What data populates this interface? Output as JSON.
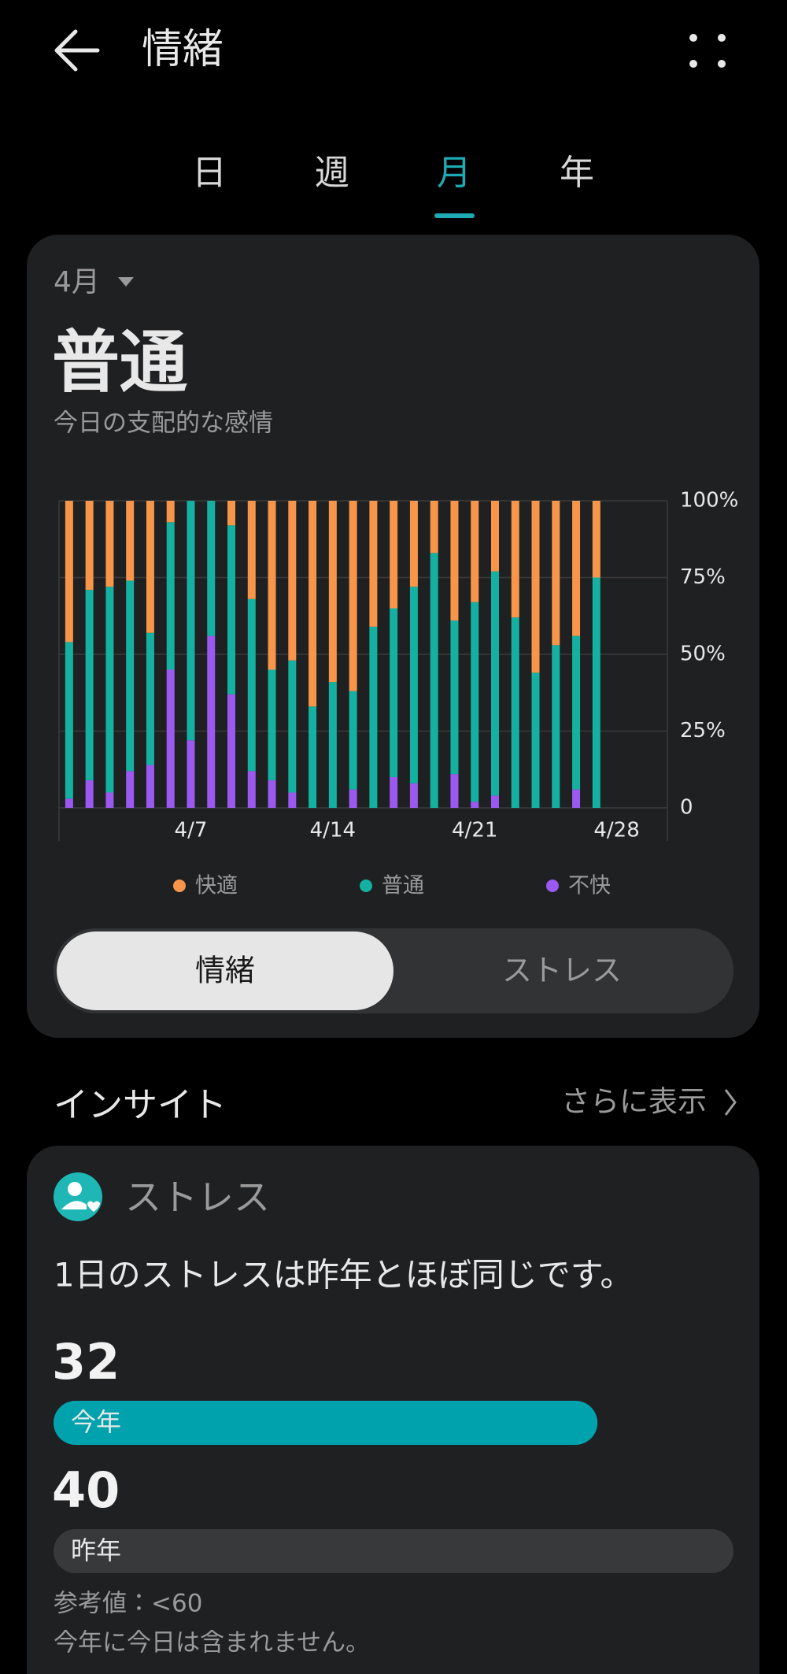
{
  "header": {
    "title": "情緒"
  },
  "tabs": [
    "日",
    "週",
    "月",
    "年"
  ],
  "summary": {
    "month": "4月",
    "dominant": "普通",
    "caption": "今日の支配的な感情"
  },
  "chart_data": {
    "type": "stacked_bar",
    "categories": [
      null,
      null,
      null,
      null,
      null,
      null,
      "4/7",
      null,
      null,
      null,
      null,
      null,
      null,
      "4/14",
      null,
      null,
      null,
      null,
      null,
      null,
      "4/21",
      null,
      null,
      null,
      null,
      null,
      null,
      "4/28",
      null,
      null
    ],
    "series": [
      {
        "name": "快適",
        "color": "#f7964a",
        "values": [
          46,
          29,
          28,
          26,
          43,
          7,
          0,
          0,
          8,
          32,
          55,
          52,
          67,
          59,
          62,
          41,
          35,
          28,
          17,
          39,
          33,
          23,
          38,
          56,
          47,
          44,
          25,
          null,
          null,
          null
        ]
      },
      {
        "name": "普通",
        "color": "#14b1a2",
        "values": [
          51,
          62,
          67,
          62,
          43,
          48,
          78,
          44,
          55,
          56,
          36,
          43,
          33,
          41,
          32,
          59,
          55,
          64,
          83,
          50,
          65,
          73,
          62,
          44,
          53,
          50,
          75,
          null,
          null,
          null
        ]
      },
      {
        "name": "不快",
        "color": "#9b59f0",
        "values": [
          3,
          9,
          5,
          12,
          14,
          45,
          22,
          56,
          37,
          12,
          9,
          5,
          0,
          0,
          6,
          0,
          10,
          8,
          0,
          11,
          2,
          4,
          0,
          0,
          0,
          6,
          0,
          null,
          null,
          null
        ]
      }
    ],
    "ylim": [
      0,
      100
    ],
    "yticks": [
      0,
      {
        "value": 25,
        "label": "25%"
      },
      {
        "value": 50,
        "label": "50%"
      },
      {
        "value": 75,
        "label": "75%"
      },
      {
        "value": 100,
        "label": "100%"
      }
    ],
    "grid": true
  },
  "toggle": [
    "情緒",
    "ストレス"
  ],
  "insights": {
    "title": "インサイト",
    "more": "さらに表示",
    "card": {
      "category": "ストレス",
      "message": "1日のストレスは昨年とほぼ同じです。",
      "comparisons": [
        {
          "value": 32,
          "label": "今年",
          "color": "#00a3ad"
        },
        {
          "value": 40,
          "label": "昨年",
          "color": "#38393b"
        }
      ],
      "reference": "参考値：<60",
      "note": "今年に今日は含まれません。"
    }
  }
}
